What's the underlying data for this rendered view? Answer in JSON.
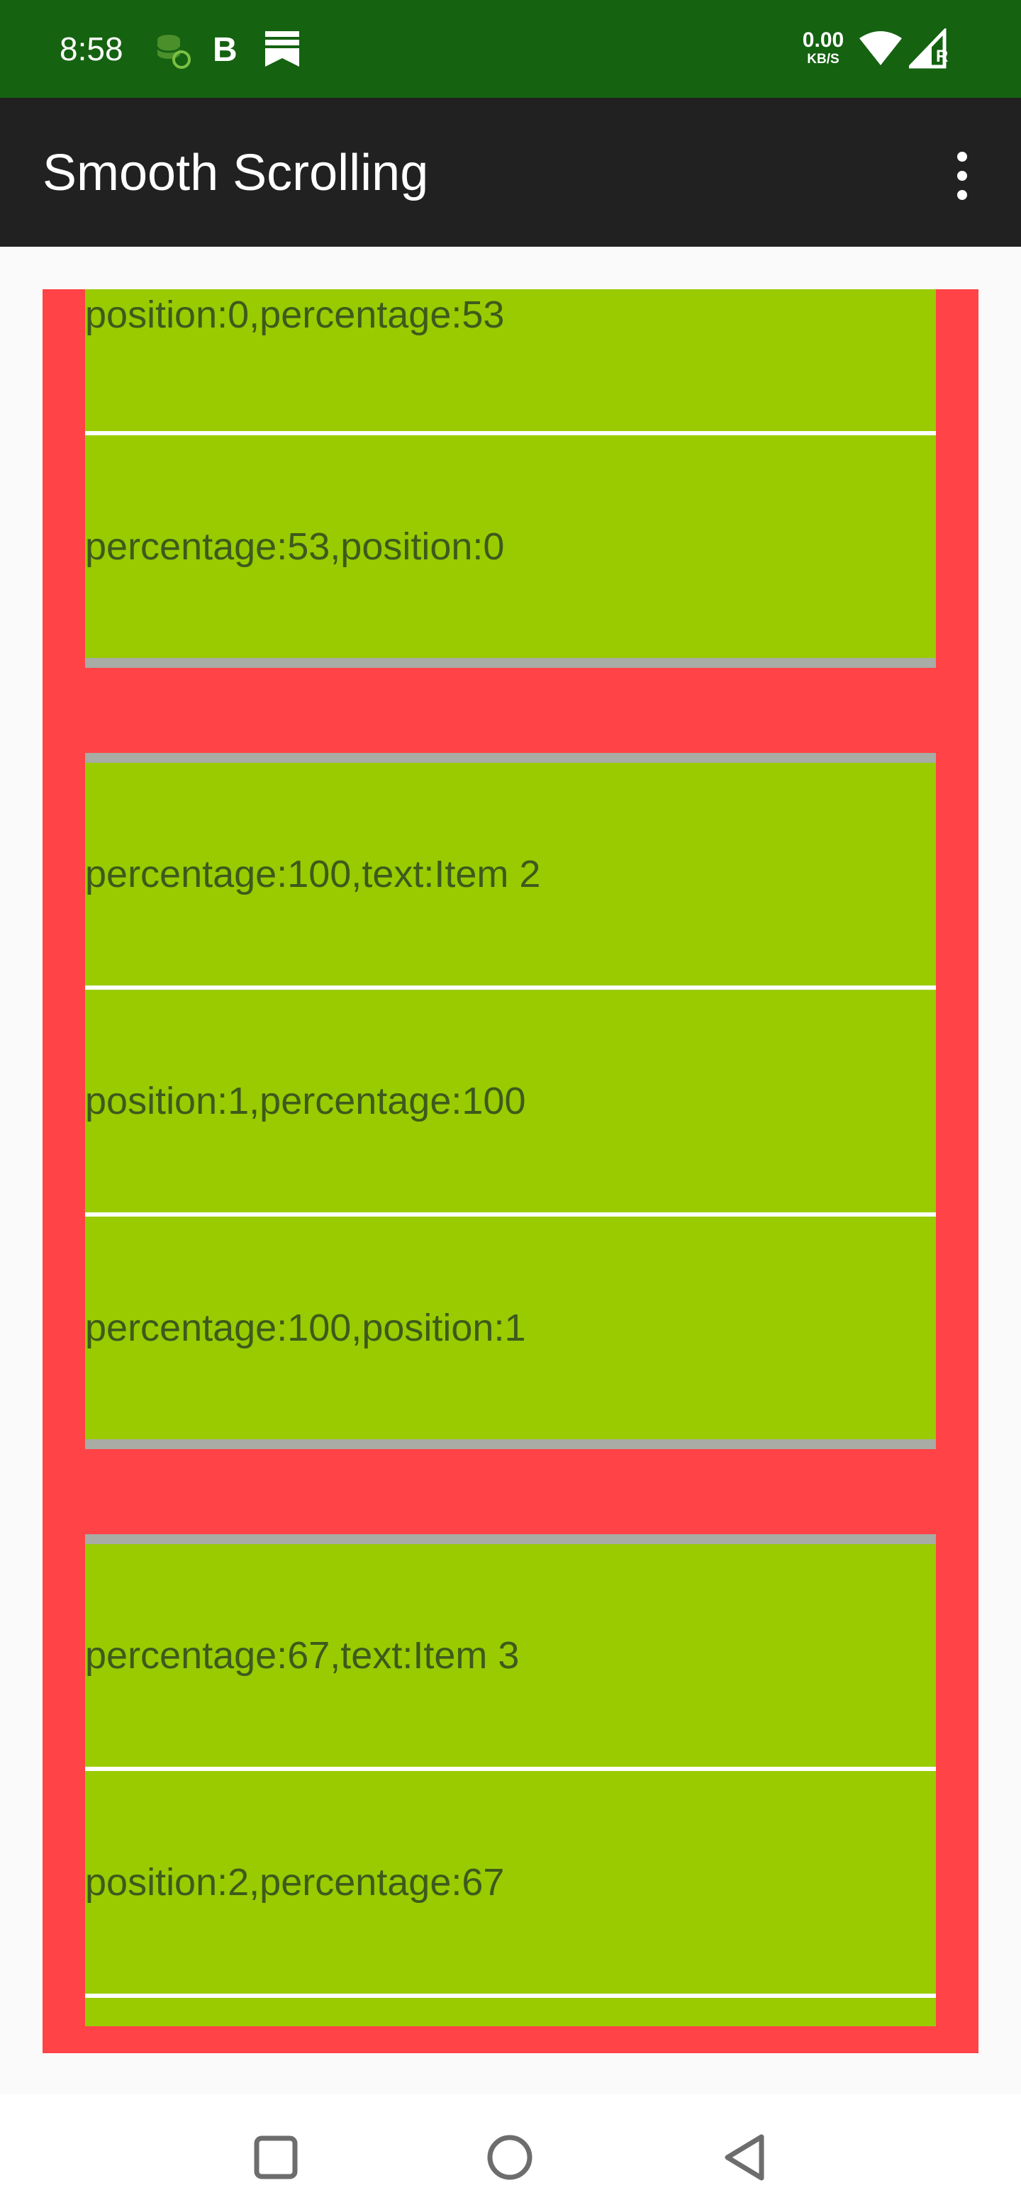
{
  "status_bar": {
    "time": "8:58",
    "net_speed_value": "0.00",
    "net_speed_unit": "KB/S",
    "icons": [
      "data-saver-icon",
      "b-app-icon",
      "bookmark-notification-icon",
      "wifi-icon",
      "signal-icon"
    ],
    "signal_badge": "R",
    "background": "#156211"
  },
  "app_bar": {
    "title": "Smooth Scrolling",
    "menu_icon": "more-vert-icon",
    "background": "#212121"
  },
  "list": {
    "background": "#ff4346",
    "row_color": "#99cb00",
    "text_color": "#3e5a1c",
    "cards": [
      {
        "rows": [
          "position:0,percentage:53",
          "percentage:53,position:0"
        ]
      },
      {
        "rows": [
          "percentage:100,text:Item 2",
          "position:1,percentage:100",
          "percentage:100,position:1"
        ]
      },
      {
        "rows": [
          "percentage:67,text:Item 3",
          "position:2,percentage:67",
          ""
        ]
      }
    ]
  },
  "nav_bar": {
    "buttons": [
      "recents-icon",
      "home-icon",
      "back-icon"
    ]
  }
}
